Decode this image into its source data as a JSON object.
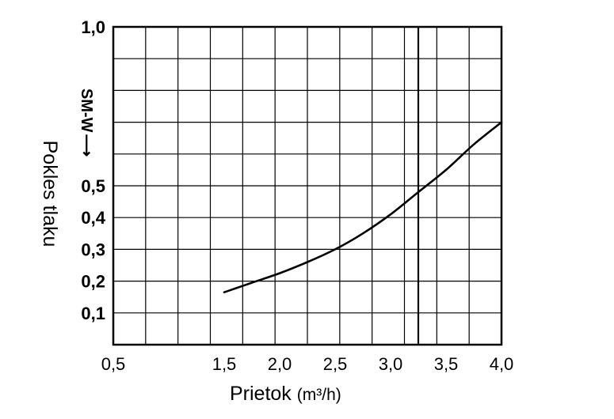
{
  "chart_data": {
    "type": "line",
    "xlabel": "Prietok",
    "xunit": "(m³/h)",
    "ylabel": "Pokles tlaku",
    "xlim": [
      0.5,
      4.0
    ],
    "y_gridlines": 10,
    "grid": true,
    "x_ticks": [
      "0,5",
      "1,5",
      "2,0",
      "2,5",
      "3,0",
      "3,5",
      "4,0"
    ],
    "y_ticks": [
      {
        "value": 0.1,
        "label": "0,1"
      },
      {
        "value": 0.2,
        "label": "0,2"
      },
      {
        "value": 0.3,
        "label": "0,3"
      },
      {
        "value": 0.4,
        "label": "0,4"
      },
      {
        "value": 0.5,
        "label": "0,5"
      },
      {
        "value": 1.0,
        "label": "1,0"
      }
    ],
    "reference_line_x": 3.25,
    "series": [
      {
        "name": "SM-W",
        "arrow": "⟶",
        "color": "#000000",
        "x": [
          1.5,
          1.75,
          2.0,
          2.25,
          2.5,
          2.75,
          3.0,
          3.25,
          3.5,
          3.75,
          4.0
        ],
        "y": [
          0.165,
          0.195,
          0.225,
          0.26,
          0.3,
          0.35,
          0.41,
          0.48,
          0.55,
          0.63,
          0.7
        ]
      }
    ]
  }
}
